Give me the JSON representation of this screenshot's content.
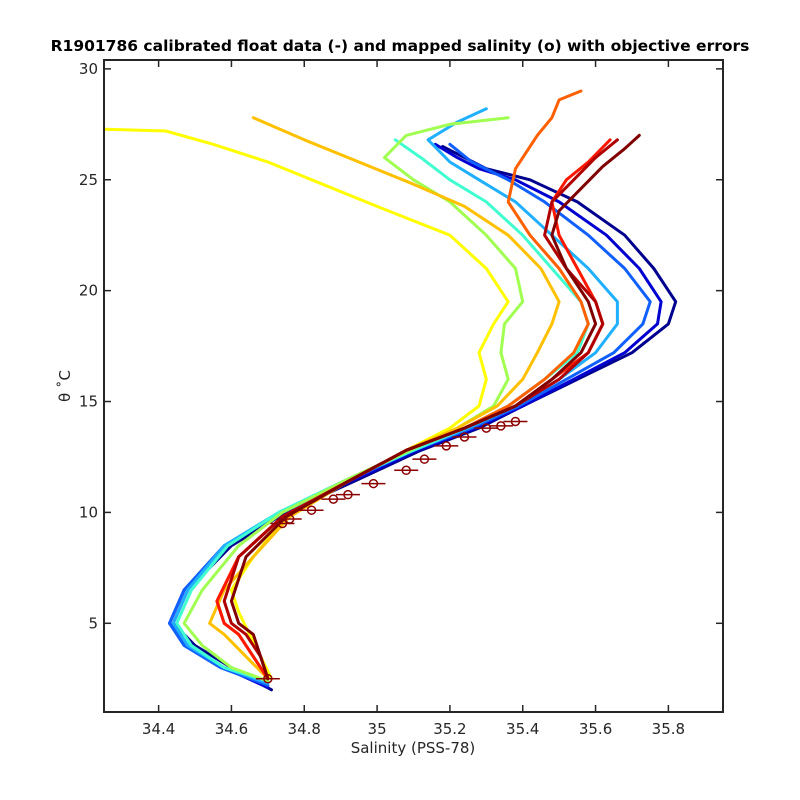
{
  "chart_data": {
    "type": "line",
    "title": "R1901786 calibrated float data (-) and mapped salinity (o) with objective errors",
    "xlabel": "Salinity (PSS-78)",
    "ylabel": "θ ˚C",
    "xlim": [
      34.25,
      35.95
    ],
    "ylim": [
      1.0,
      30.4
    ],
    "xticks": [
      "34.4",
      "34.6",
      "34.8",
      "35",
      "35.2",
      "35.4",
      "35.6",
      "35.8"
    ],
    "yticks": [
      "5",
      "10",
      "15",
      "20",
      "25",
      "30"
    ],
    "grid": false,
    "legend": "none",
    "colormap": "jet (profile index, early = blue, late = dark red)",
    "series": [
      {
        "color": "#00008f",
        "x": [
          34.71,
          34.6,
          34.5,
          34.44,
          34.48,
          34.6,
          34.75,
          34.95,
          35.12,
          35.28,
          35.4,
          35.55,
          35.7,
          35.8,
          35.82,
          35.76,
          35.68,
          35.55,
          35.42,
          35.3,
          35.24,
          35.18
        ],
        "y": [
          2.0,
          3.0,
          4.0,
          5.0,
          6.5,
          8.5,
          10.0,
          11.5,
          12.8,
          13.8,
          14.8,
          16.0,
          17.2,
          18.5,
          19.5,
          21.0,
          22.5,
          24.0,
          25.0,
          25.5,
          26.0,
          26.5
        ]
      },
      {
        "color": "#0000d0",
        "x": [
          34.7,
          34.58,
          34.48,
          34.43,
          34.47,
          34.58,
          34.74,
          34.94,
          35.11,
          35.27,
          35.4,
          35.54,
          35.68,
          35.77,
          35.78,
          35.72,
          35.63,
          35.5,
          35.38,
          35.28,
          35.22,
          35.16
        ],
        "y": [
          2.1,
          3.0,
          4.0,
          5.0,
          6.5,
          8.5,
          10.0,
          11.5,
          12.8,
          13.8,
          14.8,
          16.0,
          17.2,
          18.5,
          19.5,
          21.0,
          22.5,
          24.0,
          25.0,
          25.5,
          26.0,
          26.6
        ]
      },
      {
        "color": "#1060ff",
        "x": [
          34.7,
          34.57,
          34.47,
          34.43,
          34.47,
          34.58,
          34.74,
          34.93,
          35.1,
          35.26,
          35.39,
          35.52,
          35.65,
          35.73,
          35.75,
          35.68,
          35.58,
          35.46,
          35.36,
          35.26,
          35.2
        ],
        "y": [
          2.2,
          3.0,
          4.0,
          5.0,
          6.5,
          8.5,
          10.0,
          11.5,
          12.8,
          13.8,
          14.8,
          16.0,
          17.2,
          18.5,
          19.5,
          21.0,
          22.5,
          24.0,
          25.0,
          25.8,
          26.6
        ]
      },
      {
        "color": "#20b0ff",
        "x": [
          34.7,
          34.58,
          34.48,
          34.44,
          34.48,
          34.58,
          34.73,
          34.92,
          35.1,
          35.25,
          35.38,
          35.5,
          35.6,
          35.66,
          35.66,
          35.58,
          35.48,
          35.38,
          35.28,
          35.2,
          35.14,
          35.22,
          35.3
        ],
        "y": [
          2.3,
          3.0,
          4.0,
          5.0,
          6.5,
          8.5,
          10.0,
          11.5,
          12.8,
          13.8,
          14.8,
          16.0,
          17.2,
          18.5,
          19.5,
          21.0,
          22.5,
          24.0,
          25.0,
          25.8,
          26.8,
          27.6,
          28.2
        ]
      },
      {
        "color": "#40ffd0",
        "x": [
          34.7,
          34.58,
          34.49,
          34.45,
          34.49,
          34.59,
          34.73,
          34.92,
          35.1,
          35.24,
          35.36,
          35.46,
          35.55,
          35.58,
          35.56,
          35.48,
          35.4,
          35.3,
          35.2,
          35.12,
          35.05
        ],
        "y": [
          2.4,
          3.0,
          4.0,
          5.0,
          6.5,
          8.5,
          10.0,
          11.5,
          12.8,
          13.8,
          14.8,
          16.0,
          17.2,
          18.5,
          19.5,
          21.0,
          22.5,
          24.0,
          25.0,
          26.0,
          26.8
        ]
      },
      {
        "color": "#a0ff50",
        "x": [
          34.7,
          34.6,
          34.52,
          34.47,
          34.52,
          34.62,
          34.74,
          34.92,
          35.09,
          35.22,
          35.32,
          35.36,
          35.34,
          35.35,
          35.4,
          35.38,
          35.3,
          35.2,
          35.1,
          35.02,
          35.08,
          35.2,
          35.36
        ],
        "y": [
          2.4,
          3.0,
          4.0,
          5.0,
          6.5,
          8.5,
          10.0,
          11.5,
          12.8,
          13.8,
          14.8,
          16.0,
          17.2,
          18.5,
          19.5,
          21.0,
          22.5,
          24.0,
          25.0,
          26.0,
          27.0,
          27.5,
          27.8
        ]
      },
      {
        "color": "#ffff00",
        "x": [
          34.71,
          34.68,
          34.65,
          34.62,
          34.6,
          34.66,
          34.75,
          34.92,
          35.08,
          35.2,
          35.28,
          35.3,
          35.28,
          35.32,
          35.36,
          35.3,
          35.2,
          35.0,
          34.85,
          34.7,
          34.55,
          34.42,
          34.2
        ],
        "y": [
          2.5,
          3.5,
          4.5,
          5.5,
          6.5,
          8.0,
          9.8,
          11.4,
          12.8,
          13.8,
          14.8,
          16.0,
          17.2,
          18.5,
          19.5,
          21.0,
          22.5,
          23.8,
          24.8,
          25.8,
          26.6,
          27.2,
          27.3
        ]
      },
      {
        "color": "#ffc000",
        "x": [
          34.7,
          34.64,
          34.58,
          34.54,
          34.58,
          34.66,
          34.76,
          34.92,
          35.08,
          35.22,
          35.33,
          35.4,
          35.44,
          35.48,
          35.5,
          35.45,
          35.36,
          35.24,
          35.1,
          34.95,
          34.8,
          34.66
        ],
        "y": [
          2.5,
          3.5,
          4.5,
          5.0,
          6.5,
          8.0,
          9.8,
          11.4,
          12.8,
          13.8,
          14.8,
          16.0,
          17.2,
          18.5,
          19.5,
          21.0,
          22.5,
          23.8,
          24.8,
          25.8,
          26.8,
          27.8
        ]
      },
      {
        "color": "#ff6000",
        "x": [
          34.7,
          34.66,
          34.62,
          34.58,
          34.56,
          34.62,
          34.74,
          34.92,
          35.08,
          35.24,
          35.36,
          35.46,
          35.54,
          35.58,
          35.56,
          35.5,
          35.42,
          35.36,
          35.38,
          35.44,
          35.48,
          35.5,
          35.56
        ],
        "y": [
          2.5,
          3.5,
          4.5,
          5.0,
          6.0,
          8.0,
          9.8,
          11.4,
          12.8,
          13.8,
          14.8,
          16.0,
          17.2,
          18.5,
          19.5,
          21.0,
          22.5,
          24.0,
          25.5,
          27.0,
          27.8,
          28.6,
          29.0
        ]
      },
      {
        "color": "#ff1800",
        "x": [
          34.7,
          34.66,
          34.62,
          34.58,
          34.56,
          34.62,
          34.74,
          34.92,
          35.08,
          35.24,
          35.38,
          35.48,
          35.58,
          35.62,
          35.6,
          35.55,
          35.5,
          35.48,
          35.52,
          35.58,
          35.64
        ],
        "y": [
          2.5,
          3.5,
          4.5,
          5.0,
          6.0,
          8.0,
          9.8,
          11.4,
          12.8,
          13.8,
          14.8,
          16.0,
          17.2,
          18.5,
          19.5,
          21.0,
          22.5,
          24.0,
          25.0,
          25.8,
          26.8
        ]
      },
      {
        "color": "#b00000",
        "x": [
          34.7,
          34.68,
          34.64,
          34.6,
          34.58,
          34.62,
          34.74,
          34.92,
          35.08,
          35.24,
          35.38,
          35.5,
          35.58,
          35.62,
          35.6,
          35.52,
          35.46,
          35.48,
          35.54,
          35.6,
          35.66
        ],
        "y": [
          2.5,
          3.5,
          4.5,
          5.0,
          6.0,
          8.0,
          9.8,
          11.4,
          12.8,
          13.8,
          14.8,
          16.0,
          17.2,
          18.5,
          19.5,
          21.0,
          22.5,
          24.0,
          25.0,
          26.0,
          26.8
        ]
      },
      {
        "color": "#800000",
        "x": [
          34.7,
          34.68,
          34.66,
          34.62,
          34.6,
          34.64,
          34.75,
          34.92,
          35.08,
          35.24,
          35.38,
          35.48,
          35.56,
          35.6,
          35.58,
          35.52,
          35.48,
          35.5,
          35.56,
          35.62,
          35.68,
          35.72
        ],
        "y": [
          2.5,
          3.5,
          4.5,
          5.0,
          6.0,
          8.0,
          9.8,
          11.4,
          12.8,
          13.8,
          14.8,
          16.0,
          17.2,
          18.5,
          19.5,
          21.0,
          22.5,
          23.6,
          24.6,
          25.6,
          26.4,
          27.0
        ]
      }
    ],
    "mapped_points": {
      "marker": "o",
      "color": "#8b0000",
      "x": [
        34.7,
        34.74,
        34.76,
        34.82,
        34.88,
        34.92,
        34.99,
        35.08,
        35.13,
        35.19,
        35.24,
        35.3,
        35.34,
        35.38
      ],
      "y": [
        2.5,
        9.5,
        9.7,
        10.1,
        10.6,
        10.8,
        11.3,
        11.9,
        12.4,
        13.0,
        13.4,
        13.8,
        13.9,
        14.1
      ]
    }
  }
}
